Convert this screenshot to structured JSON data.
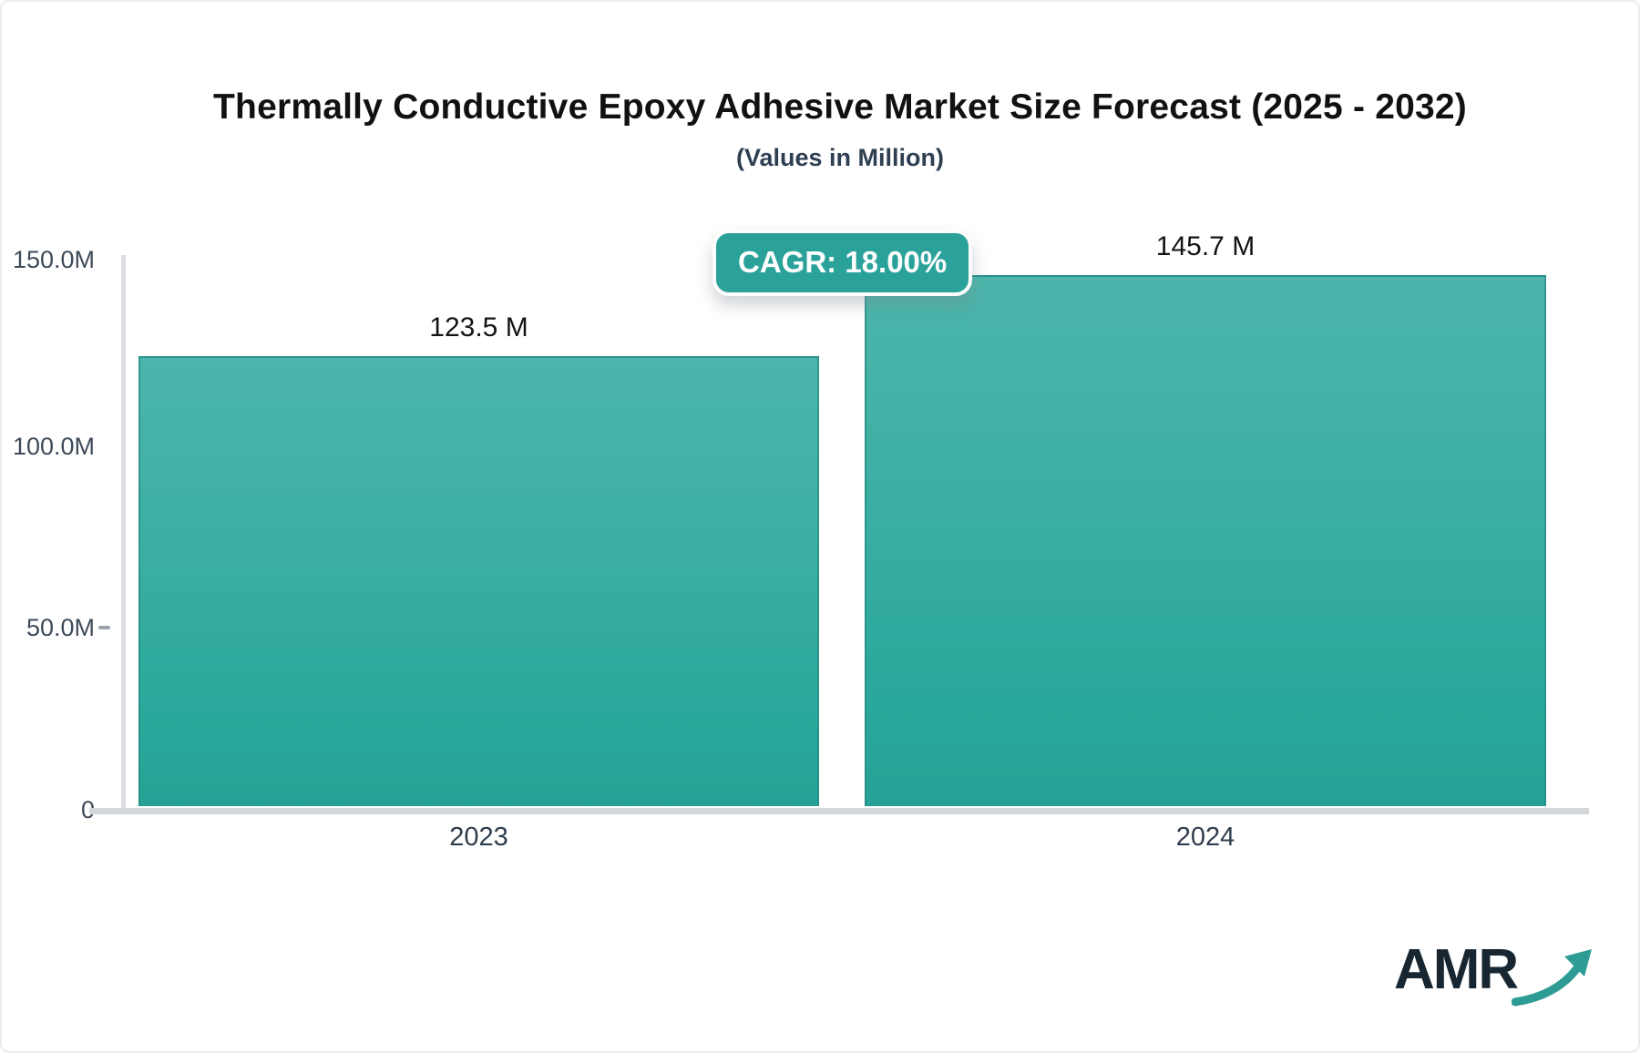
{
  "title": "Thermally Conductive Epoxy Adhesive Market Size Forecast (2025 - 2032)",
  "subtitle": "(Values in Million)",
  "badge": {
    "label": "CAGR: 18.00%"
  },
  "logo": {
    "text": "AMR"
  },
  "colors": {
    "bar_top": "#4db5ab",
    "bar_bottom": "#27a195",
    "bar_border": "#278882",
    "badge_bg": "#2aa29a",
    "axis_line": "#dcdde1",
    "baseline": "#d3d7da",
    "title_text": "#101112",
    "slate_text": "#2e3f52",
    "logo_navy": "#172630",
    "arrow_teal": "#2e9c94"
  },
  "chart_data": {
    "type": "bar",
    "title": "Thermally Conductive Epoxy Adhesive Market Size Forecast (2025 - 2032)",
    "subtitle": "(Values in Million)",
    "annotation": "CAGR: 18.00%",
    "categories": [
      "2023",
      "2024"
    ],
    "values": [
      123.5,
      145.7
    ],
    "value_labels": [
      "123.5 M",
      "145.7 M"
    ],
    "xlabel": "",
    "ylabel": "",
    "ylim": [
      0,
      150
    ],
    "ytick_values": [
      150,
      100,
      50,
      0
    ],
    "ytick_labels": [
      "150.0M",
      "100.0M",
      "50.0M",
      "0"
    ],
    "grid": false,
    "legend_position": "none"
  }
}
